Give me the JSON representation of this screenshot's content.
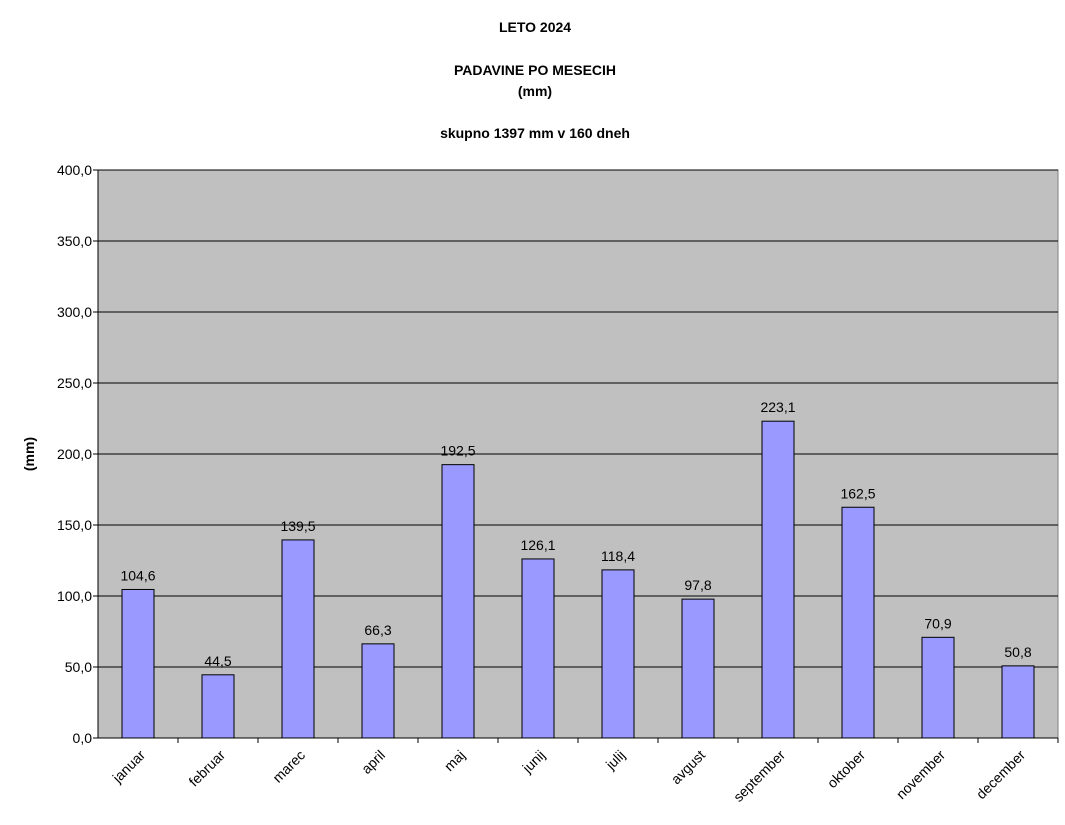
{
  "chart_data": {
    "type": "bar",
    "title_lines": [
      "LETO 2024",
      "PADAVINE PO MESECIH",
      "(mm)",
      "skupno 1397 mm v  160 dneh"
    ],
    "xlabel": "",
    "ylabel": "(mm)",
    "categories": [
      "januar",
      "februar",
      "marec",
      "april",
      "maj",
      "junij",
      "julij",
      "avgust",
      "september",
      "oktober",
      "november",
      "december"
    ],
    "values": [
      104.6,
      44.5,
      139.5,
      66.3,
      192.5,
      126.1,
      118.4,
      97.8,
      223.1,
      162.5,
      70.9,
      50.8
    ],
    "data_labels": [
      "104,6",
      "44,5",
      "139,5",
      "66,3",
      "192,5",
      "126,1",
      "118,4",
      "97,8",
      "223,1",
      "162,5",
      "70,9",
      "50,8"
    ],
    "ylim": [
      0,
      400
    ],
    "y_ticks": [
      "0,0",
      "50,0",
      "100,0",
      "150,0",
      "200,0",
      "250,0",
      "300,0",
      "350,0",
      "400,0"
    ],
    "grid": true,
    "colors": {
      "bar": "#9999FF",
      "plot_background": "#C0C0C0",
      "gridline": "#000000"
    }
  }
}
